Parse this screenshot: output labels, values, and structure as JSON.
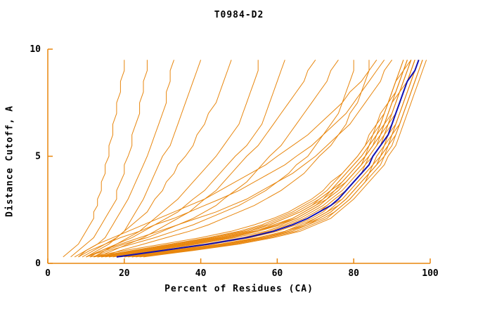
{
  "title": "T0984-D2",
  "axes": {
    "xlabel": "Percent of Residues (CA)",
    "ylabel": "Distance Cutoff, A",
    "x_ticks": [
      0,
      20,
      40,
      60,
      80,
      100
    ],
    "y_ticks": [
      0,
      5,
      10
    ],
    "xlim": [
      0,
      100
    ],
    "ylim": [
      0,
      10
    ]
  },
  "colors": {
    "model_curve": "#e8860d",
    "highlight_curve": "#1111b4",
    "axis": "#e8860d",
    "text": "#000000",
    "background": "#ffffff"
  },
  "chart_data": {
    "type": "line",
    "title": "T0984-D2",
    "xlabel": "Percent of Residues (CA)",
    "ylabel": "Distance Cutoff, A",
    "xlim": [
      0,
      100
    ],
    "ylim": [
      0,
      10
    ],
    "grid": false,
    "legend": "none",
    "cutoffs": [
      0.3,
      0.6,
      0.9,
      1.2,
      1.5,
      1.8,
      2.1,
      2.4,
      2.7,
      3.0,
      3.4,
      3.8,
      4.2,
      4.6,
      5.0,
      5.5,
      6.0,
      6.5,
      7.0,
      7.5,
      8.0,
      8.5,
      9.0,
      9.5
    ],
    "highlight_percents": [
      18,
      30,
      42,
      52,
      59,
      64,
      68,
      71,
      74,
      76,
      78,
      80,
      82,
      84,
      85,
      87,
      89,
      90,
      91,
      92,
      93,
      94,
      96,
      97
    ],
    "model_percents": [
      [
        4,
        6,
        8,
        9,
        10,
        11,
        12,
        12,
        13,
        13,
        14,
        14,
        15,
        15,
        16,
        16,
        17,
        17,
        18,
        18,
        19,
        19,
        20,
        20
      ],
      [
        6,
        8,
        10,
        12,
        13,
        14,
        15,
        16,
        17,
        18,
        18,
        19,
        20,
        20,
        21,
        22,
        22,
        23,
        24,
        24,
        25,
        25,
        26,
        26
      ],
      [
        8,
        10,
        13,
        15,
        16,
        17,
        18,
        19,
        20,
        21,
        22,
        23,
        24,
        25,
        26,
        27,
        28,
        29,
        30,
        31,
        31,
        32,
        32,
        33
      ],
      [
        10,
        13,
        16,
        18,
        20,
        21,
        22,
        23,
        24,
        25,
        26,
        27,
        28,
        29,
        30,
        32,
        33,
        34,
        35,
        36,
        37,
        38,
        39,
        40
      ],
      [
        9,
        12,
        15,
        18,
        20,
        22,
        24,
        26,
        27,
        28,
        30,
        31,
        33,
        34,
        36,
        38,
        39,
        41,
        42,
        44,
        45,
        46,
        47,
        48
      ],
      [
        12,
        15,
        18,
        21,
        24,
        26,
        28,
        30,
        32,
        34,
        36,
        38,
        40,
        42,
        44,
        46,
        48,
        50,
        51,
        52,
        53,
        54,
        55,
        55
      ],
      [
        11,
        14,
        18,
        22,
        25,
        28,
        31,
        34,
        36,
        38,
        41,
        43,
        45,
        47,
        49,
        52,
        54,
        56,
        57,
        58,
        59,
        60,
        61,
        62
      ],
      [
        13,
        17,
        21,
        25,
        28,
        31,
        34,
        37,
        39,
        41,
        44,
        46,
        48,
        50,
        52,
        55,
        57,
        59,
        61,
        63,
        65,
        67,
        68,
        70
      ],
      [
        10,
        15,
        20,
        26,
        30,
        34,
        38,
        41,
        44,
        46,
        49,
        52,
        54,
        56,
        58,
        61,
        63,
        65,
        67,
        69,
        71,
        73,
        74,
        76
      ],
      [
        12,
        16,
        22,
        28,
        33,
        38,
        42,
        46,
        50,
        53,
        57,
        60,
        63,
        65,
        68,
        70,
        72,
        74,
        76,
        77,
        78,
        79,
        80,
        80
      ],
      [
        14,
        19,
        25,
        31,
        37,
        42,
        46,
        50,
        54,
        57,
        61,
        64,
        67,
        69,
        71,
        74,
        76,
        78,
        79,
        81,
        82,
        83,
        84,
        84
      ],
      [
        10,
        14,
        19,
        24,
        29,
        34,
        39,
        44,
        48,
        52,
        56,
        60,
        64,
        67,
        70,
        73,
        76,
        79,
        81,
        83,
        85,
        87,
        88,
        90
      ],
      [
        8,
        11,
        15,
        19,
        24,
        28,
        33,
        37,
        41,
        45,
        50,
        54,
        58,
        62,
        65,
        69,
        72,
        75,
        78,
        80,
        82,
        84,
        86,
        88
      ],
      [
        7,
        10,
        13,
        17,
        21,
        25,
        29,
        33,
        37,
        41,
        45,
        49,
        53,
        57,
        60,
        64,
        68,
        71,
        74,
        77,
        79,
        82,
        84,
        86
      ],
      [
        14,
        24,
        35,
        45,
        53,
        58,
        62,
        66,
        69,
        71,
        74,
        76,
        78,
        80,
        82,
        84,
        86,
        87,
        88,
        89,
        90,
        91,
        92,
        93
      ],
      [
        20,
        32,
        45,
        55,
        62,
        66,
        70,
        73,
        75,
        77,
        79,
        81,
        83,
        85,
        86,
        88,
        89,
        90,
        91,
        92,
        93,
        94,
        95,
        96
      ],
      [
        16,
        27,
        38,
        48,
        55,
        61,
        65,
        68,
        71,
        73,
        76,
        78,
        80,
        82,
        83,
        85,
        87,
        88,
        89,
        90,
        91,
        92,
        93,
        94
      ],
      [
        22,
        35,
        47,
        57,
        63,
        68,
        71,
        74,
        76,
        78,
        80,
        82,
        84,
        86,
        87,
        89,
        90,
        91,
        92,
        93,
        94,
        95,
        96,
        97
      ],
      [
        12,
        22,
        32,
        42,
        50,
        56,
        60,
        64,
        67,
        70,
        73,
        75,
        77,
        79,
        81,
        83,
        85,
        86,
        88,
        89,
        90,
        91,
        92,
        93
      ],
      [
        24,
        37,
        49,
        58,
        65,
        69,
        73,
        75,
        77,
        79,
        81,
        83,
        85,
        87,
        88,
        90,
        91,
        92,
        93,
        94,
        95,
        96,
        97,
        98
      ],
      [
        15,
        25,
        36,
        46,
        54,
        60,
        64,
        67,
        70,
        72,
        75,
        77,
        79,
        81,
        83,
        85,
        86,
        88,
        89,
        90,
        91,
        92,
        93,
        95
      ],
      [
        19,
        30,
        42,
        52,
        59,
        64,
        68,
        71,
        73,
        75,
        78,
        80,
        82,
        84,
        85,
        87,
        88,
        90,
        91,
        92,
        93,
        94,
        95,
        96
      ],
      [
        13,
        23,
        33,
        43,
        51,
        57,
        61,
        65,
        68,
        71,
        74,
        76,
        78,
        80,
        82,
        84,
        85,
        87,
        88,
        89,
        91,
        92,
        93,
        94
      ],
      [
        21,
        33,
        45,
        55,
        62,
        67,
        70,
        73,
        76,
        78,
        80,
        82,
        84,
        85,
        87,
        88,
        90,
        91,
        92,
        93,
        94,
        95,
        96,
        97
      ],
      [
        17,
        28,
        39,
        49,
        57,
        62,
        66,
        69,
        72,
        74,
        77,
        79,
        81,
        83,
        84,
        86,
        88,
        89,
        90,
        91,
        92,
        93,
        94,
        95
      ],
      [
        23,
        36,
        48,
        57,
        64,
        68,
        72,
        75,
        77,
        79,
        81,
        83,
        84,
        86,
        88,
        89,
        91,
        92,
        93,
        94,
        95,
        96,
        97,
        98
      ],
      [
        11,
        20,
        30,
        40,
        48,
        54,
        59,
        63,
        66,
        69,
        72,
        74,
        77,
        79,
        81,
        83,
        84,
        86,
        87,
        89,
        90,
        91,
        93,
        94
      ],
      [
        18,
        29,
        41,
        51,
        58,
        63,
        67,
        70,
        73,
        75,
        78,
        80,
        82,
        83,
        85,
        87,
        88,
        89,
        91,
        92,
        93,
        94,
        95,
        96
      ],
      [
        25,
        38,
        50,
        59,
        66,
        70,
        74,
        76,
        78,
        80,
        82,
        84,
        86,
        88,
        89,
        91,
        92,
        93,
        94,
        95,
        96,
        97,
        98,
        99
      ],
      [
        14,
        25,
        36,
        46,
        54,
        59,
        64,
        67,
        70,
        73,
        75,
        78,
        80,
        82,
        83,
        85,
        87,
        88,
        90,
        91,
        92,
        93,
        94,
        95
      ],
      [
        20,
        31,
        43,
        53,
        60,
        65,
        69,
        72,
        74,
        77,
        79,
        81,
        83,
        85,
        86,
        88,
        89,
        91,
        92,
        93,
        94,
        95,
        96,
        97
      ],
      [
        16,
        26,
        37,
        47,
        55,
        60,
        65,
        68,
        71,
        73,
        76,
        78,
        80,
        82,
        84,
        86,
        87,
        89,
        90,
        91,
        92,
        94,
        95,
        96
      ],
      [
        22,
        34,
        46,
        56,
        63,
        67,
        71,
        74,
        76,
        78,
        80,
        82,
        84,
        86,
        87,
        89,
        90,
        92,
        93,
        94,
        95,
        96,
        97,
        98
      ],
      [
        13,
        24,
        34,
        44,
        52,
        58,
        62,
        66,
        69,
        72,
        74,
        77,
        79,
        81,
        83,
        84,
        86,
        88,
        89,
        90,
        92,
        93,
        94,
        95
      ]
    ]
  }
}
